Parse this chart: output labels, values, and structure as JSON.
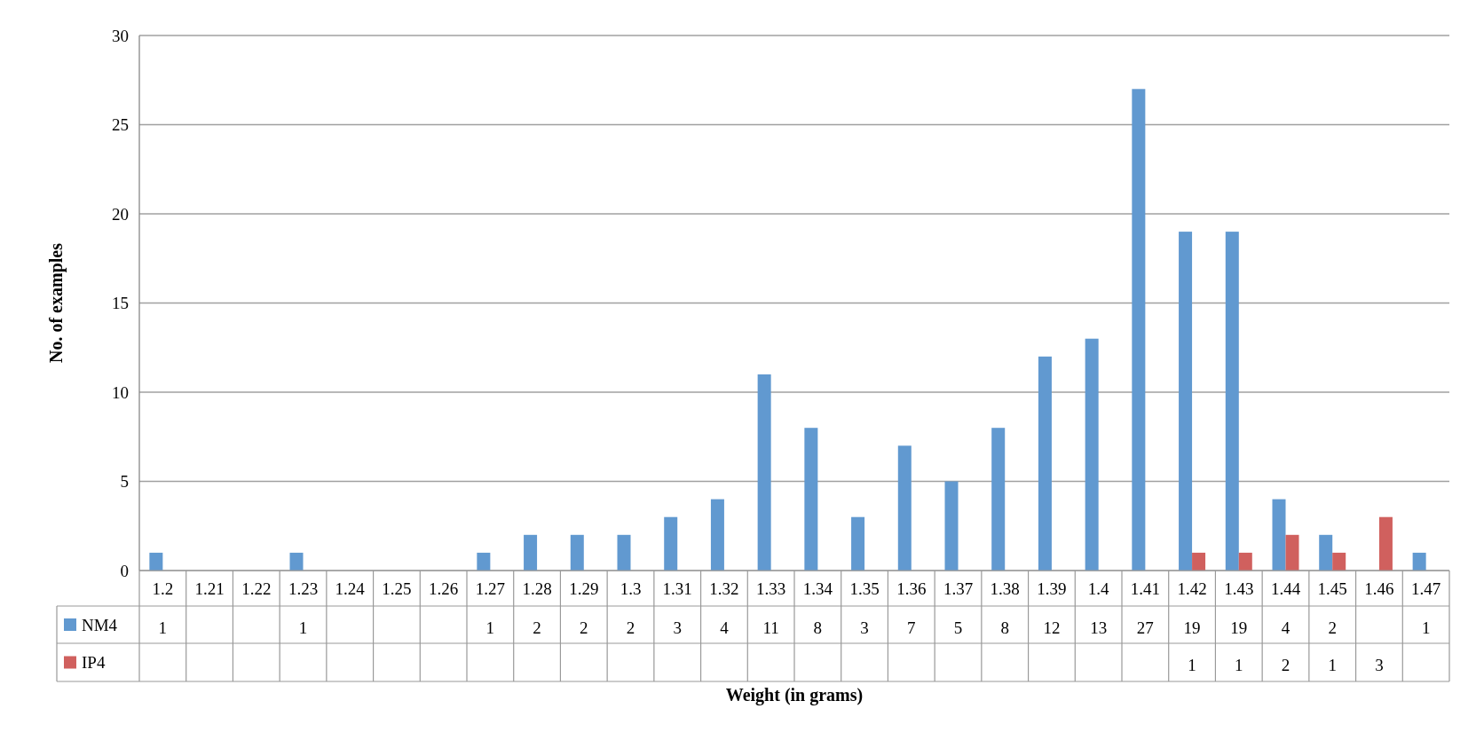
{
  "chart_data": {
    "type": "bar",
    "xlabel": "Weight (in grams)",
    "ylabel": "No. of examples",
    "categories": [
      "1.2",
      "1.21",
      "1.22",
      "1.23",
      "1.24",
      "1.25",
      "1.26",
      "1.27",
      "1.28",
      "1.29",
      "1.3",
      "1.31",
      "1.32",
      "1.33",
      "1.34",
      "1.35",
      "1.36",
      "1.37",
      "1.38",
      "1.39",
      "1.4",
      "1.41",
      "1.42",
      "1.43",
      "1.44",
      "1.45",
      "1.46",
      "1.47"
    ],
    "series": [
      {
        "name": "NM4",
        "color": "#6199d0",
        "values": [
          1,
          null,
          null,
          1,
          null,
          null,
          null,
          1,
          2,
          2,
          2,
          3,
          4,
          11,
          8,
          3,
          7,
          5,
          8,
          12,
          13,
          27,
          19,
          19,
          4,
          2,
          null,
          1
        ]
      },
      {
        "name": "IP4",
        "color": "#d0605e",
        "values": [
          null,
          null,
          null,
          null,
          null,
          null,
          null,
          null,
          null,
          null,
          null,
          null,
          null,
          null,
          null,
          null,
          null,
          null,
          null,
          null,
          null,
          null,
          1,
          1,
          2,
          1,
          3,
          null
        ]
      }
    ],
    "ylim": [
      0,
      30
    ],
    "yticks": [
      0,
      5,
      10,
      15,
      20,
      25,
      30
    ],
    "grid": "y",
    "legend": "bottom left",
    "data_labels": true
  }
}
